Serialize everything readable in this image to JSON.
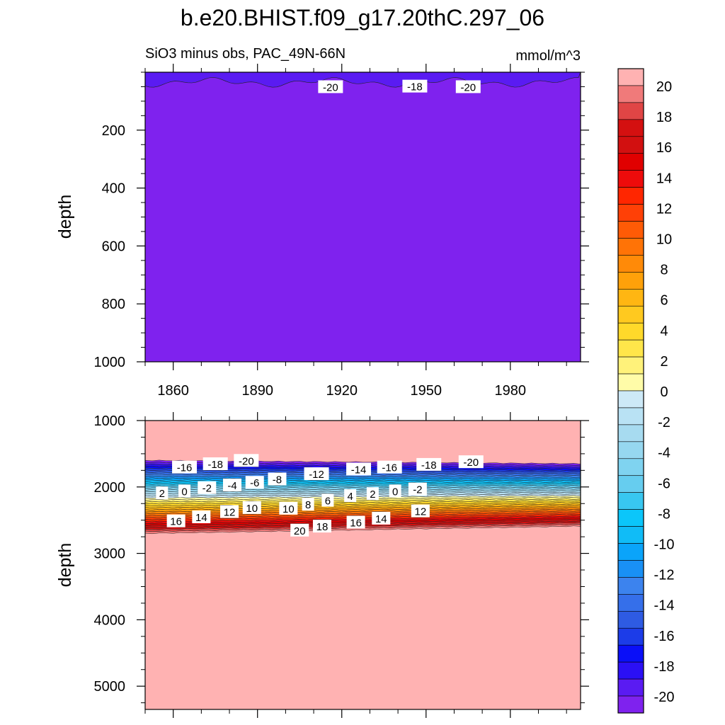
{
  "chart_data": {
    "type": "heatmap",
    "title": "b.e20.BHIST.f09_g17.20thC.297_06",
    "subtitle_left": "SiO3 minus obs, PAC_49N-66N",
    "subtitle_right": "mmol/m^3",
    "xlabel": "",
    "ylabel": "depth",
    "xlim": [
      1850,
      2005
    ],
    "x_ticks": [
      1860,
      1890,
      1920,
      1950,
      1980
    ],
    "colorbar": {
      "levels": [
        -20,
        -18,
        -16,
        -14,
        -12,
        -10,
        -8,
        -6,
        -4,
        -2,
        0,
        2,
        4,
        6,
        8,
        10,
        12,
        14,
        16,
        18,
        20
      ],
      "colors": [
        "#7f22ee",
        "#5a1bf2",
        "#2b10f5",
        "#0a0ff8",
        "#1c3ce8",
        "#2e5be3",
        "#356fea",
        "#3c83ee",
        "#1990f5",
        "#0aa4fa",
        "#10bcf7",
        "#0bc6fa",
        "#38c7f0",
        "#66cdef",
        "#7fd3f0",
        "#96d7ef",
        "#a7dbf0",
        "#b9e2f4",
        "#cde9f7",
        "#fffca8",
        "#fff27a",
        "#ffe64a",
        "#ffd92a",
        "#ffc91f",
        "#ffb612",
        "#ffa10a",
        "#ff8a08",
        "#ff7306",
        "#ff5b06",
        "#ff4006",
        "#ff2600",
        "#ee0b0b",
        "#e00000",
        "#d21010",
        "#d41010",
        "#e04545",
        "#f07a7a",
        "#ffb2b2"
      ]
    },
    "panels": [
      {
        "id": "upper",
        "ylim": [
          0,
          1000
        ],
        "y_ticks": [
          200,
          400,
          600,
          800,
          1000
        ],
        "contour_labels": [
          {
            "text": "-20",
            "year": 1916,
            "depth": 50
          },
          {
            "text": "-18",
            "year": 1946,
            "depth": 48
          },
          {
            "text": "-20",
            "year": 1965,
            "depth": 50
          }
        ]
      },
      {
        "id": "lower",
        "ylim": [
          1000,
          5350
        ],
        "y_ticks": [
          1000,
          2000,
          3000,
          4000,
          5000
        ],
        "contour_labels": [
          {
            "text": "-16",
            "year": 1864,
            "depth": 1700
          },
          {
            "text": "-18",
            "year": 1875,
            "depth": 1650
          },
          {
            "text": "-20",
            "year": 1886,
            "depth": 1600
          },
          {
            "text": "-8",
            "year": 1897,
            "depth": 1880
          },
          {
            "text": "-12",
            "year": 1911,
            "depth": 1800
          },
          {
            "text": "-14",
            "year": 1926,
            "depth": 1730
          },
          {
            "text": "-16",
            "year": 1937,
            "depth": 1700
          },
          {
            "text": "-18",
            "year": 1951,
            "depth": 1660
          },
          {
            "text": "-20",
            "year": 1966,
            "depth": 1620
          },
          {
            "text": "2",
            "year": 1856,
            "depth": 2090
          },
          {
            "text": "0",
            "year": 1864,
            "depth": 2060
          },
          {
            "text": "-2",
            "year": 1872,
            "depth": 2010
          },
          {
            "text": "-4",
            "year": 1881,
            "depth": 1970
          },
          {
            "text": "-6",
            "year": 1889,
            "depth": 1930
          },
          {
            "text": "4",
            "year": 1923,
            "depth": 2130
          },
          {
            "text": "2",
            "year": 1931,
            "depth": 2100
          },
          {
            "text": "0",
            "year": 1939,
            "depth": 2060
          },
          {
            "text": "-2",
            "year": 1947,
            "depth": 2030
          },
          {
            "text": "16",
            "year": 1861,
            "depth": 2510
          },
          {
            "text": "14",
            "year": 1870,
            "depth": 2450
          },
          {
            "text": "12",
            "year": 1880,
            "depth": 2370
          },
          {
            "text": "10",
            "year": 1888,
            "depth": 2310
          },
          {
            "text": "10",
            "year": 1901,
            "depth": 2320
          },
          {
            "text": "8",
            "year": 1908,
            "depth": 2260
          },
          {
            "text": "6",
            "year": 1915,
            "depth": 2200
          },
          {
            "text": "20",
            "year": 1905,
            "depth": 2650
          },
          {
            "text": "18",
            "year": 1913,
            "depth": 2590
          },
          {
            "text": "16",
            "year": 1925,
            "depth": 2530
          },
          {
            "text": "14",
            "year": 1934,
            "depth": 2470
          },
          {
            "text": "12",
            "year": 1948,
            "depth": 2360
          }
        ]
      }
    ]
  }
}
